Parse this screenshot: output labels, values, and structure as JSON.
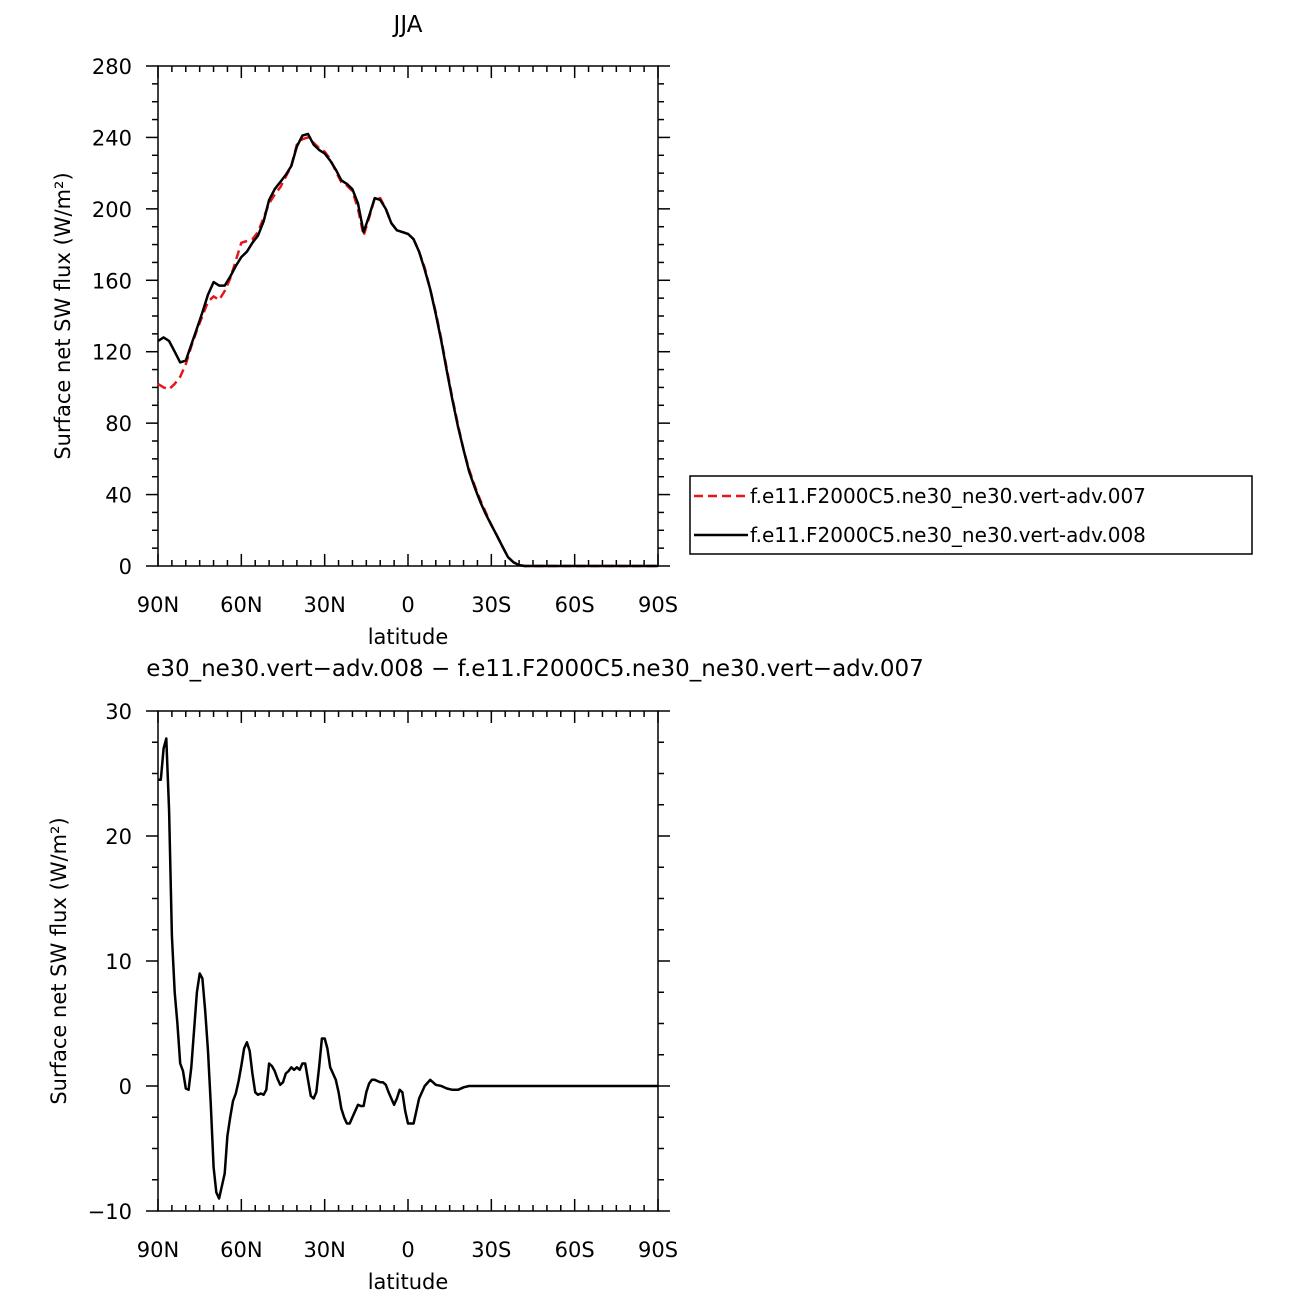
{
  "chart_data": [
    {
      "type": "line",
      "title": "JJA",
      "xlabel": "latitude",
      "ylabel": "Surface net SW flux (W/m²)",
      "xlim": [
        90,
        -90
      ],
      "ylim": [
        0,
        280
      ],
      "xticks": [
        90,
        60,
        30,
        0,
        -30,
        -60,
        -90
      ],
      "xtick_labels": [
        "90N",
        "60N",
        "30N",
        "0",
        "30S",
        "60S",
        "90S"
      ],
      "yticks": [
        0,
        40,
        80,
        120,
        160,
        200,
        240,
        280
      ],
      "ytick_labels": [
        "0",
        "40",
        "80",
        "120",
        "160",
        "200",
        "240",
        "280"
      ],
      "grid": false,
      "legend_position": "right",
      "x": [
        90,
        88,
        86,
        84,
        82,
        80,
        78,
        76,
        74,
        72,
        70,
        68,
        66,
        64,
        62,
        60,
        58,
        56,
        54,
        52,
        50,
        48,
        46,
        44,
        42,
        40,
        38,
        36,
        34,
        32,
        30,
        28,
        26,
        24,
        22,
        20,
        18,
        16,
        14,
        12,
        10,
        8,
        6,
        4,
        2,
        0,
        -2,
        -4,
        -6,
        -8,
        -10,
        -12,
        -14,
        -16,
        -18,
        -20,
        -22,
        -24,
        -26,
        -28,
        -30,
        -32,
        -34,
        -36,
        -38,
        -40,
        -42,
        -44,
        -46,
        -48,
        -50,
        -52,
        -54,
        -56,
        -58,
        -60,
        -62,
        -64,
        -66,
        -68,
        -70,
        -72,
        -75,
        -80,
        -85,
        -90
      ],
      "series": [
        {
          "name": "f.e11.F2000C5.ne30_ne30.vert-adv.007",
          "color": "#e8151b",
          "dash": "dashed",
          "values": [
            102,
            100,
            99,
            102,
            106,
            113,
            123,
            132,
            140,
            148,
            151,
            149,
            154,
            161,
            171,
            181,
            182,
            183,
            187,
            195,
            203,
            208,
            212,
            218,
            224,
            236,
            239,
            240,
            237,
            234,
            232,
            228,
            221,
            215,
            213,
            210,
            200,
            185,
            195,
            206,
            206,
            200,
            192,
            188,
            187,
            186,
            183,
            176,
            167,
            155,
            142,
            127,
            110,
            94,
            79,
            65,
            54,
            45,
            37,
            30,
            23,
            17,
            11,
            5,
            2,
            0.5,
            0,
            0,
            0,
            0,
            0,
            0,
            0,
            0,
            0,
            0,
            0,
            0,
            0,
            0,
            0,
            0,
            0,
            0,
            0,
            0
          ]
        },
        {
          "name": "f.e11.F2000C5.ne30_ne30.vert-adv.008",
          "color": "#000000",
          "dash": "solid",
          "values": [
            126,
            128,
            126,
            120,
            114,
            115,
            124,
            133,
            142,
            152,
            159,
            157,
            157,
            162,
            168,
            173,
            176,
            181,
            185,
            193,
            205,
            211,
            215,
            219,
            224,
            235,
            241,
            242,
            236,
            233,
            231,
            227,
            222,
            216,
            214,
            211,
            203,
            187,
            196,
            206,
            205,
            200,
            192,
            188,
            187,
            186,
            183,
            176,
            166,
            155,
            141,
            126,
            109,
            93,
            78,
            65,
            53,
            44,
            36,
            29,
            23,
            17,
            11,
            5,
            2,
            0.5,
            0,
            0,
            0,
            0,
            0,
            0,
            0,
            0,
            0,
            0,
            0,
            0,
            0,
            0,
            0,
            0,
            0,
            0,
            0,
            0
          ]
        }
      ]
    },
    {
      "type": "line",
      "title": "e30_ne30.vert−adv.008 − f.e11.F2000C5.ne30_ne30.vert−adv.007",
      "xlabel": "latitude",
      "ylabel": "Surface net SW flux (W/m²)",
      "xlim": [
        90,
        -90
      ],
      "ylim": [
        -10,
        30
      ],
      "xticks": [
        90,
        60,
        30,
        0,
        -30,
        -60,
        -90
      ],
      "xtick_labels": [
        "90N",
        "60N",
        "30N",
        "0",
        "30S",
        "60S",
        "90S"
      ],
      "yticks": [
        -10,
        0,
        10,
        20,
        30
      ],
      "ytick_labels": [
        "−10",
        "0",
        "10",
        "20",
        "30"
      ],
      "grid": false,
      "x": [
        90,
        89,
        88,
        87,
        86,
        85,
        84,
        83,
        82,
        81,
        80,
        79,
        78,
        77,
        76,
        75,
        74,
        73,
        72,
        71,
        70,
        69,
        68,
        67,
        66,
        65,
        64,
        63,
        62,
        61,
        60,
        59,
        58,
        57,
        56,
        55,
        54,
        53,
        52,
        51,
        50,
        49,
        48,
        47,
        46,
        45,
        44,
        43,
        42,
        41,
        40,
        39,
        38,
        37,
        36,
        35,
        34,
        33,
        32,
        31,
        30,
        29,
        28,
        27,
        26,
        25,
        24,
        23,
        22,
        21,
        20,
        19,
        18,
        17,
        16,
        15,
        14,
        13,
        12,
        11,
        10,
        9,
        8,
        7,
        6,
        5,
        4,
        3,
        2,
        1,
        0,
        -2,
        -4,
        -6,
        -8,
        -10,
        -12,
        -14,
        -16,
        -18,
        -20,
        -22,
        -24,
        -26,
        -28,
        -30,
        -32,
        -34,
        -36,
        -38,
        -40,
        -42,
        -44,
        -46,
        -48,
        -50,
        -52,
        -54,
        -56,
        -58,
        -60,
        -65,
        -70,
        -75,
        -80,
        -85,
        -90
      ],
      "series": [
        {
          "name": "",
          "color": "#000000",
          "dash": "solid",
          "values": [
            24.5,
            24.5,
            27.0,
            27.8,
            22.0,
            12.0,
            7.5,
            5.0,
            1.8,
            1.2,
            -0.2,
            -0.3,
            1.5,
            4.5,
            7.5,
            9.0,
            8.6,
            6.0,
            2.8,
            -1.5,
            -6.5,
            -8.5,
            -9.0,
            -8.0,
            -7.0,
            -4.0,
            -2.5,
            -1.2,
            -0.6,
            0.4,
            1.6,
            3.0,
            3.5,
            2.8,
            1.0,
            -0.5,
            -0.7,
            -0.6,
            -0.7,
            -0.3,
            1.8,
            1.6,
            1.2,
            0.6,
            0.1,
            0.3,
            1.0,
            1.2,
            1.5,
            1.3,
            1.5,
            1.3,
            1.8,
            1.8,
            0.5,
            -0.8,
            -1.0,
            -0.5,
            1.5,
            3.8,
            3.8,
            3.0,
            1.5,
            1.0,
            0.5,
            -0.5,
            -1.8,
            -2.5,
            -3.0,
            -3.0,
            -2.5,
            -2.0,
            -1.5,
            -1.6,
            -1.6,
            -0.5,
            0.2,
            0.5,
            0.5,
            0.4,
            0.3,
            0.3,
            0.1,
            -0.5,
            -1.0,
            -1.5,
            -1.0,
            -0.3,
            -0.5,
            -2.0,
            -3.0,
            -3.0,
            -1.0,
            0.0,
            0.5,
            0.1,
            0.0,
            -0.2,
            -0.3,
            -0.3,
            -0.1,
            0.0,
            0.0,
            0.0,
            0.0,
            0.0,
            0.0,
            0.0,
            0.0,
            0.0,
            0.0,
            0.0,
            0.0,
            0.0,
            0.0,
            0.0,
            0.0,
            0.0,
            0.0,
            0.0,
            0.0,
            0.0,
            0.0,
            0.0,
            0.0,
            0.0,
            0.0
          ]
        }
      ]
    }
  ]
}
